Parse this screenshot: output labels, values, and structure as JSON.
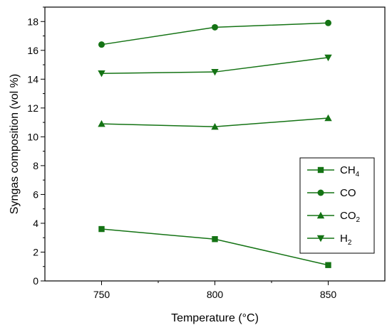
{
  "chart_data": {
    "type": "line",
    "xlabel": "Temperature (°C)",
    "ylabel": "Syngas composition (vol %)",
    "x": [
      750,
      800,
      850
    ],
    "xticks": [
      "750",
      "800",
      "850"
    ],
    "xlim": [
      725,
      875
    ],
    "ylim": [
      0,
      19
    ],
    "yticks": [
      "0",
      "2",
      "4",
      "6",
      "8",
      "10",
      "12",
      "14",
      "16",
      "18"
    ],
    "grid": false,
    "legend_position": "bottom-right",
    "color": "#147314",
    "series": [
      {
        "name": "CH4",
        "label_main": "CH",
        "label_sub": "4",
        "marker": "square",
        "values": [
          3.6,
          2.9,
          1.1
        ]
      },
      {
        "name": "CO",
        "label_main": "CO",
        "label_sub": "",
        "marker": "circle",
        "values": [
          16.4,
          17.6,
          17.9
        ]
      },
      {
        "name": "CO2",
        "label_main": "CO",
        "label_sub": "2",
        "marker": "triangle-up",
        "values": [
          10.9,
          10.7,
          11.3
        ]
      },
      {
        "name": "H2",
        "label_main": "H",
        "label_sub": "2",
        "marker": "triangle-down",
        "values": [
          14.4,
          14.5,
          15.5
        ]
      }
    ]
  }
}
